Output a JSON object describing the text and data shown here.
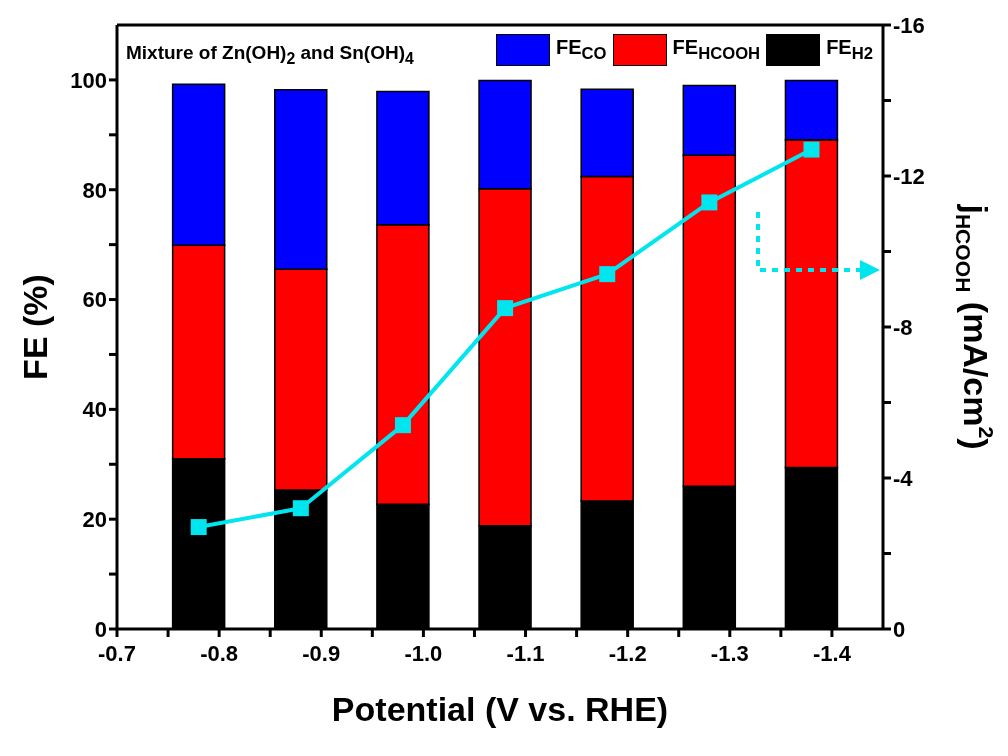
{
  "chart_data": {
    "type": "bar",
    "stacked": true,
    "xlabel": "Potential (V vs. RHE)",
    "ylabel": "FE (%)",
    "y2label": "j$_{HCOOH}$ (mA/cm$^{2}$)",
    "annotations": [
      "Mixture of Zn(OH)$_{2}$ and Sn(OH)$_{4}$"
    ],
    "x": [
      -0.78,
      -0.88,
      -0.98,
      -1.08,
      -1.18,
      -1.28,
      -1.38
    ],
    "series": [
      {
        "name": "FE$_{H2}$",
        "color": "#000000",
        "values": [
          31.0,
          25.3,
          22.7,
          18.8,
          23.3,
          26.0,
          29.4
        ]
      },
      {
        "name": "FE$_{HCOOH}$",
        "color": "#ff0000",
        "values": [
          38.9,
          40.2,
          50.9,
          61.4,
          59.1,
          60.3,
          59.7
        ]
      },
      {
        "name": "FE$_{CO}$",
        "color": "#0000ff",
        "values": [
          29.3,
          32.7,
          24.3,
          19.7,
          15.9,
          12.7,
          10.8
        ]
      },
      {
        "type": "line",
        "axis": "y2",
        "color": "#00e5ee",
        "marker": "square",
        "values": [
          -2.7,
          -3.2,
          -5.4,
          -8.5,
          -9.4,
          -11.3,
          -12.7
        ]
      }
    ],
    "xlim": [
      -0.7,
      -1.45
    ],
    "xticks": [
      -0.7,
      {
        "value": -0.75,
        "label": null
      },
      -0.8,
      {
        "value": -0.85,
        "label": null
      },
      -0.9,
      {
        "value": -0.95,
        "label": null
      },
      {
        "value": -1.0,
        "label": "-1.0"
      },
      {
        "value": -1.05,
        "label": null
      },
      -1.1,
      {
        "value": -1.15,
        "label": null
      },
      -1.2,
      {
        "value": -1.25,
        "label": null
      },
      -1.3,
      {
        "value": -1.35,
        "label": null
      },
      -1.4
    ],
    "ylim": [
      0,
      110
    ],
    "yticks": [
      0,
      {
        "value": 10,
        "label": null
      },
      20,
      {
        "value": 30,
        "label": null
      },
      40,
      {
        "value": 50,
        "label": null
      },
      60,
      {
        "value": 70,
        "label": null
      },
      80,
      {
        "value": 90,
        "label": null
      },
      100
    ],
    "y2lim": [
      0,
      -16
    ],
    "y2ticks": [
      0,
      {
        "value": -2,
        "label": null
      },
      -4,
      {
        "value": -6,
        "label": null
      },
      -8,
      {
        "value": -10,
        "label": null
      },
      -12,
      {
        "value": -14,
        "label": null
      },
      -16
    ],
    "legend": "top right",
    "grid": false
  }
}
